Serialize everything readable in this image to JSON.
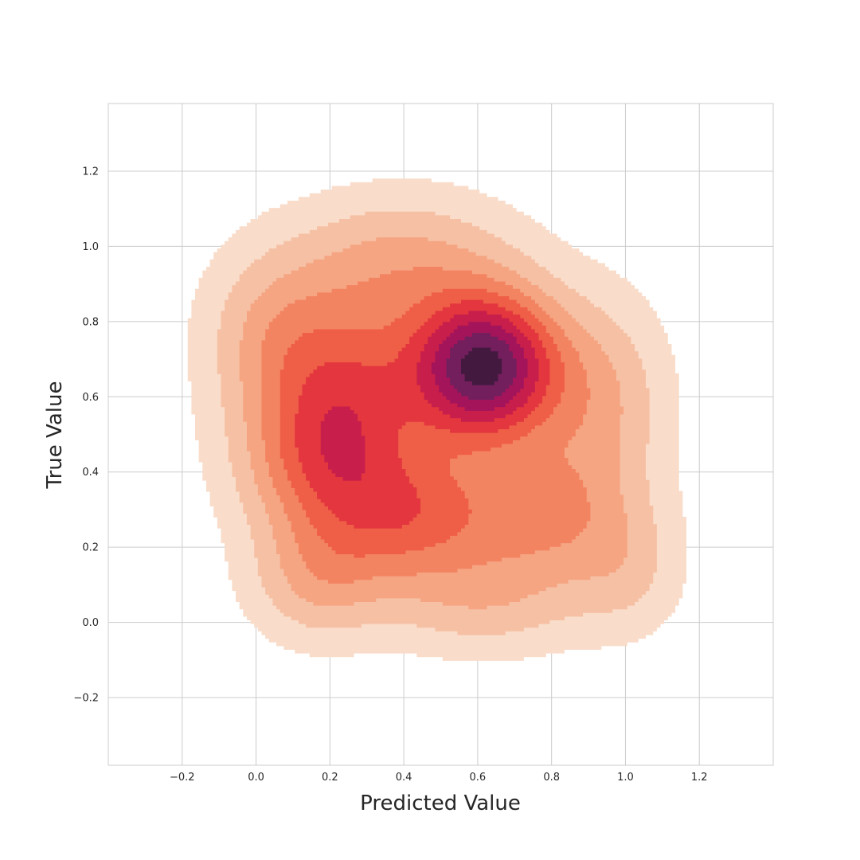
{
  "chart_data": {
    "type": "kde_contour",
    "xlabel": "Predicted Value",
    "ylabel": "True Value",
    "xlim": [
      -0.4,
      1.4
    ],
    "ylim": [
      -0.38,
      1.38
    ],
    "xticks": [
      -0.2,
      0.0,
      0.2,
      0.4,
      0.6,
      0.8,
      1.0,
      1.2
    ],
    "yticks": [
      -0.2,
      0.0,
      0.2,
      0.4,
      0.6,
      0.8,
      1.0,
      1.2
    ],
    "xtick_labels": [
      "−0.2",
      "0.0",
      "0.2",
      "0.4",
      "0.6",
      "0.8",
      "1.0",
      "1.2"
    ],
    "ytick_labels": [
      "−0.2",
      "0.0",
      "0.2",
      "0.4",
      "0.6",
      "0.8",
      "1.0",
      "1.2"
    ],
    "grid": true,
    "colormap": "rocket_r",
    "levels": 10,
    "density_peak": [
      0.62,
      0.68
    ],
    "kernels": [
      {
        "x": 0.62,
        "y": 0.68,
        "w": 1.0,
        "sx": 0.13,
        "sy": 0.13
      },
      {
        "x": 0.25,
        "y": 0.62,
        "w": 0.45,
        "sx": 0.17,
        "sy": 0.17
      },
      {
        "x": 0.18,
        "y": 0.42,
        "w": 0.32,
        "sx": 0.14,
        "sy": 0.14
      },
      {
        "x": 0.42,
        "y": 0.28,
        "w": 0.42,
        "sx": 0.17,
        "sy": 0.13
      },
      {
        "x": 0.78,
        "y": 0.28,
        "w": 0.28,
        "sx": 0.15,
        "sy": 0.13
      },
      {
        "x": 0.17,
        "y": 0.12,
        "w": 0.2,
        "sx": 0.12,
        "sy": 0.11
      },
      {
        "x": 0.4,
        "y": 0.95,
        "w": 0.22,
        "sx": 0.2,
        "sy": 0.12
      },
      {
        "x": 0.92,
        "y": 0.58,
        "w": 0.22,
        "sx": 0.12,
        "sy": 0.18
      },
      {
        "x": 0.05,
        "y": 0.78,
        "w": 0.16,
        "sx": 0.12,
        "sy": 0.14
      },
      {
        "x": 1.0,
        "y": 0.15,
        "w": 0.12,
        "sx": 0.1,
        "sy": 0.12
      },
      {
        "x": 0.62,
        "y": 0.05,
        "w": 0.14,
        "sx": 0.18,
        "sy": 0.09
      }
    ]
  }
}
